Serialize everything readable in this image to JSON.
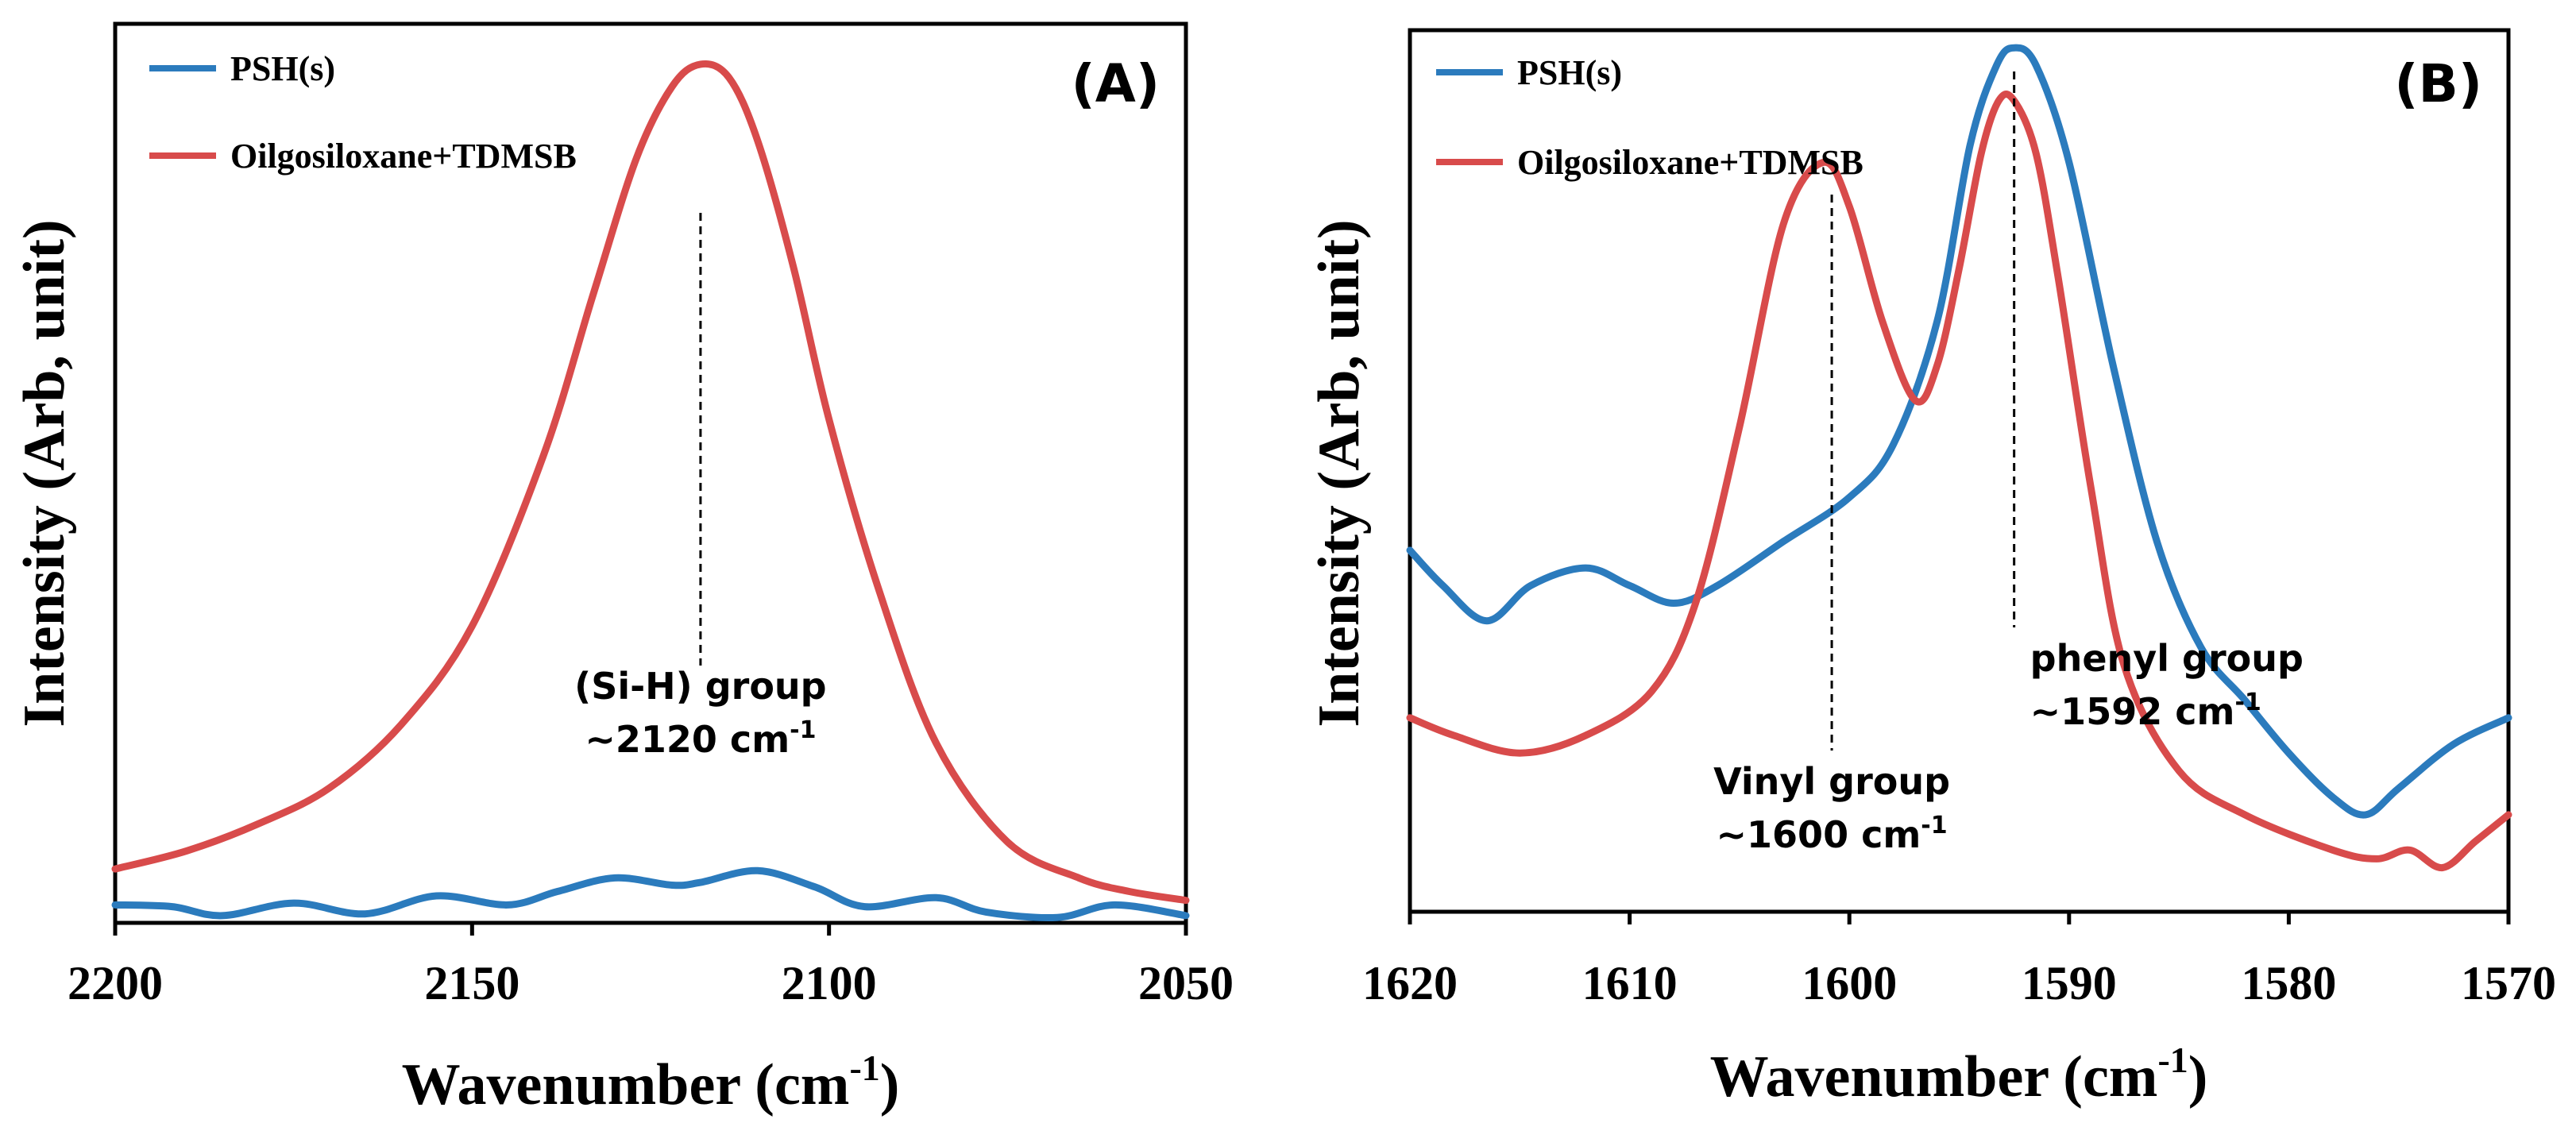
{
  "colors": {
    "psh": "#2b7bbd",
    "oligo": "#d84b4b",
    "axis": "#000000"
  },
  "chart_data": [
    {
      "type": "line",
      "panel_label": "(A)",
      "ylabel": "Intensity (Arb, unit)",
      "xlabel": {
        "base": "Wavenumber (cm",
        "sup": "-1",
        "close": ")"
      },
      "xlim": [
        2200,
        2050
      ],
      "ylim": [
        0,
        1
      ],
      "xticks": [
        "2200",
        "2150",
        "2100",
        "2050"
      ],
      "xtick_values": [
        2200,
        2150,
        2100,
        2050
      ],
      "legend": [
        "PSH(s)",
        "Oilgosiloxane+TDMSB"
      ],
      "series": [
        {
          "name": "PSH(s)",
          "x": [
            2200,
            2192,
            2185,
            2175,
            2165,
            2155,
            2145,
            2138,
            2130,
            2122,
            2118,
            2110,
            2102,
            2095,
            2085,
            2078,
            2068,
            2060,
            2050
          ],
          "y": [
            0.02,
            0.018,
            0.008,
            0.022,
            0.01,
            0.03,
            0.02,
            0.035,
            0.05,
            0.042,
            0.045,
            0.058,
            0.04,
            0.018,
            0.028,
            0.012,
            0.006,
            0.02,
            0.008
          ]
        },
        {
          "name": "Oilgosiloxane+TDMSB",
          "x": [
            2200,
            2190,
            2180,
            2170,
            2160,
            2150,
            2140,
            2133,
            2127,
            2122,
            2118,
            2114,
            2110,
            2105,
            2100,
            2093,
            2085,
            2075,
            2065,
            2058,
            2050
          ],
          "y": [
            0.06,
            0.08,
            0.11,
            0.15,
            0.22,
            0.33,
            0.52,
            0.7,
            0.85,
            0.93,
            0.955,
            0.94,
            0.87,
            0.73,
            0.56,
            0.37,
            0.2,
            0.09,
            0.05,
            0.035,
            0.025
          ]
        }
      ],
      "annotations": [
        {
          "x": 2118,
          "lines": [
            "(Si-H) group",
            "~2120 cm"
          ],
          "sup": "-1"
        }
      ]
    },
    {
      "type": "line",
      "panel_label": "(B)",
      "ylabel": "Intensity (Arb, unit)",
      "xlabel": {
        "base": "Wavenumber (cm",
        "sup": "-1",
        "close": ")"
      },
      "xlim": [
        1620,
        1570
      ],
      "ylim": [
        0,
        1
      ],
      "xticks": [
        "1620",
        "1610",
        "1600",
        "1590",
        "1580",
        "1570"
      ],
      "xtick_values": [
        1620,
        1610,
        1600,
        1590,
        1580,
        1570
      ],
      "legend": [
        "PSH(s)",
        "Oilgosiloxane+TDMSB"
      ],
      "series": [
        {
          "name": "PSH(s)",
          "x": [
            1620,
            1618.5,
            1616.5,
            1614.5,
            1612,
            1610,
            1608,
            1606,
            1603,
            1600,
            1598,
            1596,
            1594.5,
            1593.3,
            1592.5,
            1591.5,
            1590,
            1588,
            1586,
            1584,
            1582,
            1580,
            1578,
            1576.5,
            1575,
            1572.5,
            1570
          ],
          "y": [
            0.41,
            0.37,
            0.33,
            0.37,
            0.39,
            0.37,
            0.35,
            0.37,
            0.42,
            0.47,
            0.53,
            0.67,
            0.87,
            0.96,
            0.98,
            0.96,
            0.85,
            0.62,
            0.42,
            0.3,
            0.24,
            0.18,
            0.13,
            0.11,
            0.14,
            0.19,
            0.22
          ]
        },
        {
          "name": "Oilgosiloxane+TDMSB",
          "x": [
            1620,
            1618,
            1615,
            1612,
            1609,
            1607,
            1605,
            1603,
            1601.2,
            1600,
            1598.5,
            1597,
            1596,
            1595,
            1594,
            1593.2,
            1592.5,
            1591.5,
            1590.5,
            1589,
            1587.5,
            1585,
            1582,
            1578,
            1576,
            1574.5,
            1573,
            1571.5,
            1570
          ],
          "y": [
            0.22,
            0.2,
            0.18,
            0.2,
            0.25,
            0.35,
            0.55,
            0.78,
            0.85,
            0.8,
            0.67,
            0.58,
            0.62,
            0.73,
            0.86,
            0.92,
            0.92,
            0.86,
            0.72,
            0.48,
            0.28,
            0.16,
            0.11,
            0.07,
            0.06,
            0.07,
            0.05,
            0.08,
            0.11
          ]
        }
      ],
      "annotations": [
        {
          "x": 1600.8,
          "lines": [
            "Vinyl group",
            "~1600 cm"
          ],
          "sup": "-1"
        },
        {
          "x": 1592.5,
          "lines": [
            "phenyl group",
            "~1592 cm"
          ],
          "sup": "-1"
        }
      ]
    }
  ]
}
